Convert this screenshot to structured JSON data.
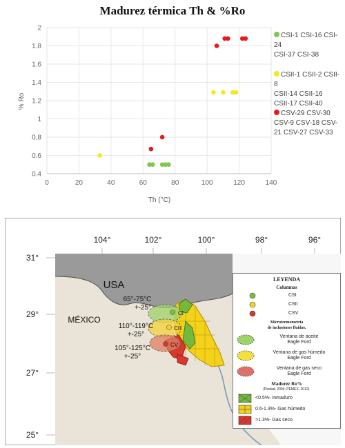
{
  "chart_data": {
    "type": "scatter",
    "title": "Madurez térmica Th & %Ro",
    "xlabel": "Th (°C)",
    "ylabel": "% Ro",
    "xlim": [
      0,
      140
    ],
    "ylim": [
      0.4,
      2
    ],
    "xticks": [
      0,
      20,
      40,
      60,
      80,
      100,
      120,
      140
    ],
    "yticks": [
      0.4,
      0.6,
      0.8,
      1,
      1.2,
      1.4,
      1.6,
      1.8,
      2
    ],
    "grid": true,
    "legend_position": "right",
    "series": [
      {
        "name": "CSI-1 CSI-16 CSI-24 CSI-37 CSI-38",
        "legend_lines": [
          "CSI-1 CSI-16 CSI-24",
          "CSI-37 CSI-38"
        ],
        "color": "#7ec850",
        "points": [
          [
            64,
            0.5
          ],
          [
            66,
            0.5
          ],
          [
            72,
            0.5
          ],
          [
            74,
            0.5
          ],
          [
            76,
            0.5
          ]
        ]
      },
      {
        "name": "CSII-1 CSII-2 CSII-8 CSII-14 CSII-16 CSII-17 CSII-40",
        "legend_lines": [
          "CSII-1 CSII-2 CSII-8",
          "CSII-14 CSII-16",
          "CSII-17 CSII-40"
        ],
        "color": "#f2ea20",
        "points": [
          [
            33,
            0.6
          ],
          [
            104,
            1.29
          ],
          [
            110,
            1.29
          ],
          [
            116,
            1.29
          ],
          [
            118,
            1.29
          ]
        ]
      },
      {
        "name": "CSV-29 CSV-30 CSV-9 CSV-18 CSV-21 CSV-27 CSV-33",
        "legend_lines": [
          "CSV-29 CSV-30",
          "CSV-9 CSV-18 CSV-",
          "21 CSV-27 CSV-33"
        ],
        "color": "#e81a1a",
        "points": [
          [
            65,
            0.67
          ],
          [
            72,
            0.8
          ],
          [
            106,
            1.8
          ],
          [
            111,
            1.88
          ],
          [
            113,
            1.88
          ],
          [
            122,
            1.88
          ],
          [
            124,
            1.88
          ]
        ]
      }
    ]
  },
  "map": {
    "longitudes": [
      "104°",
      "102°",
      "100°",
      "98°",
      "96°"
    ],
    "latitudes": [
      "31°",
      "29°",
      "27°",
      "25°"
    ],
    "country_labels": {
      "usa": "USA",
      "mexico": "MÉXICO"
    },
    "column_labels": {
      "csi": "CI",
      "csii": "CII",
      "csv": "CV"
    },
    "temperature_labels": {
      "csi": [
        "65°-75°C",
        "+-25°"
      ],
      "csii": [
        "110°-119°C",
        "+-25°"
      ],
      "csv": [
        "105°-125°C",
        "+-25°"
      ]
    },
    "legend": {
      "title": "LEYENDA",
      "columns_title": "Columnas",
      "columns": [
        {
          "label": "CSI",
          "color": "#7ac043"
        },
        {
          "label": "CSII",
          "color": "#f1d81c"
        },
        {
          "label": "CSV",
          "color": "#d23b2e"
        }
      ],
      "micro_title": [
        "Microtermometría",
        "de inclusiones fluidas."
      ],
      "windows": [
        {
          "lines": [
            "Ventana de aceite",
            "Eagle Ford"
          ],
          "color": "#9ed36a"
        },
        {
          "lines": [
            "Ventana de gas húmedo",
            "Eagle Ford"
          ],
          "color": "#f4e03a"
        },
        {
          "lines": [
            "Ventana de gas seco",
            "Eagle Ford"
          ],
          "color": "#e0706a"
        }
      ],
      "maturity_title": "Madurez Ro%",
      "maturity_source": "(Piedad, 2004; PEMEX, 2012).",
      "maturity": [
        {
          "label": "<0.5%- Inmaduro",
          "color": "#76b83c"
        },
        {
          "label": "0.6-1.3%- Gas húmedo",
          "color": "#f2d21a"
        },
        {
          "label": ">1.3%- Gas seco",
          "color": "#d9362c"
        }
      ]
    }
  }
}
